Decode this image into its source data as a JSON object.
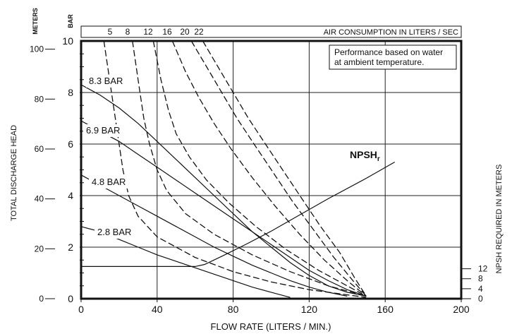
{
  "chart_data": {
    "type": "line",
    "x_axis": {
      "label": "FLOW RATE (LITERS / MIN.)",
      "range": [
        0,
        200
      ],
      "ticks": [
        0,
        40,
        80,
        120,
        160,
        200
      ],
      "tick_labels": [
        "0",
        "40",
        "80",
        "120",
        "160",
        "200"
      ]
    },
    "y_axis_left_bar": {
      "unit_label": "BAR",
      "range": [
        0,
        10
      ],
      "ticks": [
        0,
        2,
        4,
        6,
        8,
        10
      ],
      "tick_labels": [
        "0",
        "2",
        "4",
        "6",
        "8",
        "10"
      ]
    },
    "y_axis_left_meters": {
      "unit_label": "METERS",
      "label": "TOTAL DISCHARGE HEAD",
      "ticks": [
        0,
        20,
        40,
        60,
        80,
        100
      ],
      "tick_labels": [
        "0",
        "20",
        "40",
        "60",
        "80",
        "100"
      ]
    },
    "y_axis_right": {
      "label": "NPSH REQUIRED IN METERS",
      "ticks": [
        0,
        4,
        8,
        12
      ],
      "tick_labels": [
        "0",
        "4",
        "8",
        "12"
      ]
    },
    "top_axis": {
      "label": "AIR CONSUMPTION IN LITERS / SEC",
      "tick_labels": [
        "5",
        "8",
        "12",
        "16",
        "20",
        "22"
      ]
    },
    "note": [
      "Performance based on water",
      "at ambient temperature."
    ],
    "npsh_label": "NPSH",
    "npsh_subscript": "r",
    "grid": true,
    "pressure_curves": [
      {
        "label": "8.3 BAR",
        "points": [
          [
            0,
            8.3
          ],
          [
            10,
            7.9
          ],
          [
            20,
            7.4
          ],
          [
            30,
            6.8
          ],
          [
            40,
            6.1
          ],
          [
            50,
            5.4
          ],
          [
            60,
            4.7
          ],
          [
            70,
            4.0
          ],
          [
            80,
            3.3
          ],
          [
            90,
            2.6
          ],
          [
            100,
            2.0
          ],
          [
            110,
            1.4
          ],
          [
            120,
            0.9
          ],
          [
            130,
            0.5
          ],
          [
            140,
            0.25
          ],
          [
            150,
            0.1
          ]
        ]
      },
      {
        "label": "6.9 BAR",
        "points": [
          [
            0,
            6.9
          ],
          [
            10,
            6.5
          ],
          [
            20,
            6.1
          ],
          [
            30,
            5.6
          ],
          [
            40,
            5.1
          ],
          [
            50,
            4.6
          ],
          [
            60,
            4.1
          ],
          [
            70,
            3.6
          ],
          [
            80,
            3.1
          ],
          [
            90,
            2.6
          ],
          [
            100,
            2.1
          ],
          [
            110,
            1.6
          ],
          [
            120,
            1.1
          ],
          [
            130,
            0.7
          ],
          [
            140,
            0.35
          ],
          [
            150,
            0.1
          ]
        ]
      },
      {
        "label": "4.8 BAR",
        "points": [
          [
            0,
            4.8
          ],
          [
            10,
            4.4
          ],
          [
            20,
            4.0
          ],
          [
            30,
            3.6
          ],
          [
            40,
            3.2
          ],
          [
            50,
            2.8
          ],
          [
            60,
            2.4
          ],
          [
            70,
            2.0
          ],
          [
            80,
            1.65
          ],
          [
            90,
            1.3
          ],
          [
            100,
            1.0
          ],
          [
            110,
            0.7
          ],
          [
            120,
            0.45
          ],
          [
            130,
            0.25
          ],
          [
            140,
            0.1
          ]
        ]
      },
      {
        "label": "2.8 BAR",
        "points": [
          [
            0,
            2.8
          ],
          [
            10,
            2.6
          ],
          [
            20,
            2.3
          ],
          [
            30,
            2.0
          ],
          [
            40,
            1.7
          ],
          [
            50,
            1.45
          ],
          [
            60,
            1.2
          ],
          [
            70,
            0.95
          ],
          [
            80,
            0.7
          ],
          [
            90,
            0.45
          ],
          [
            100,
            0.25
          ],
          [
            110,
            0.05
          ]
        ]
      }
    ],
    "air_consumption_curves": [
      {
        "label": "5",
        "points": [
          [
            12,
            10
          ],
          [
            15,
            8.5
          ],
          [
            18,
            7.0
          ],
          [
            20,
            6.0
          ],
          [
            22,
            5.0
          ],
          [
            25,
            4.0
          ],
          [
            30,
            3.2
          ],
          [
            40,
            2.4
          ],
          [
            60,
            1.6
          ],
          [
            80,
            1.05
          ],
          [
            100,
            0.65
          ],
          [
            120,
            0.35
          ],
          [
            140,
            0.15
          ],
          [
            150,
            0.05
          ]
        ]
      },
      {
        "label": "8",
        "points": [
          [
            27,
            10
          ],
          [
            30,
            8.5
          ],
          [
            33,
            7.0
          ],
          [
            36,
            6.0
          ],
          [
            40,
            5.0
          ],
          [
            45,
            4.2
          ],
          [
            55,
            3.3
          ],
          [
            70,
            2.5
          ],
          [
            90,
            1.7
          ],
          [
            110,
            1.05
          ],
          [
            130,
            0.5
          ],
          [
            150,
            0.1
          ]
        ]
      },
      {
        "label": "12",
        "points": [
          [
            38,
            10
          ],
          [
            42,
            8.5
          ],
          [
            46,
            7.3
          ],
          [
            50,
            6.4
          ],
          [
            57,
            5.5
          ],
          [
            66,
            4.6
          ],
          [
            78,
            3.7
          ],
          [
            92,
            2.8
          ],
          [
            108,
            1.9
          ],
          [
            125,
            1.1
          ],
          [
            140,
            0.5
          ],
          [
            150,
            0.1
          ]
        ]
      },
      {
        "label": "16",
        "points": [
          [
            48,
            10
          ],
          [
            55,
            8.8
          ],
          [
            62,
            7.8
          ],
          [
            70,
            6.8
          ],
          [
            79,
            5.8
          ],
          [
            90,
            4.7
          ],
          [
            102,
            3.6
          ],
          [
            115,
            2.5
          ],
          [
            128,
            1.5
          ],
          [
            140,
            0.7
          ],
          [
            150,
            0.1
          ]
        ]
      },
      {
        "label": "20",
        "points": [
          [
            58,
            10
          ],
          [
            66,
            9.0
          ],
          [
            74,
            8.0
          ],
          [
            82,
            7.0
          ],
          [
            91,
            6.0
          ],
          [
            101,
            4.9
          ],
          [
            111,
            3.8
          ],
          [
            122,
            2.7
          ],
          [
            133,
            1.6
          ],
          [
            143,
            0.7
          ],
          [
            150,
            0.1
          ]
        ]
      },
      {
        "label": "22",
        "points": [
          [
            64,
            10
          ],
          [
            72,
            9.0
          ],
          [
            80,
            8.0
          ],
          [
            88,
            7.0
          ],
          [
            97,
            6.0
          ],
          [
            106,
            5.0
          ],
          [
            116,
            3.9
          ],
          [
            126,
            2.8
          ],
          [
            136,
            1.8
          ],
          [
            144,
            0.8
          ],
          [
            150,
            0.1
          ]
        ]
      }
    ],
    "npsh_curve": {
      "points": [
        [
          0,
          1.25
        ],
        [
          45,
          1.25
        ],
        [
          60,
          1.25
        ],
        [
          65,
          1.33
        ],
        [
          75,
          1.68
        ],
        [
          87,
          2.12
        ],
        [
          100,
          2.62
        ],
        [
          115,
          3.25
        ],
        [
          130,
          3.88
        ],
        [
          150,
          4.67
        ],
        [
          165,
          5.3
        ]
      ]
    }
  }
}
